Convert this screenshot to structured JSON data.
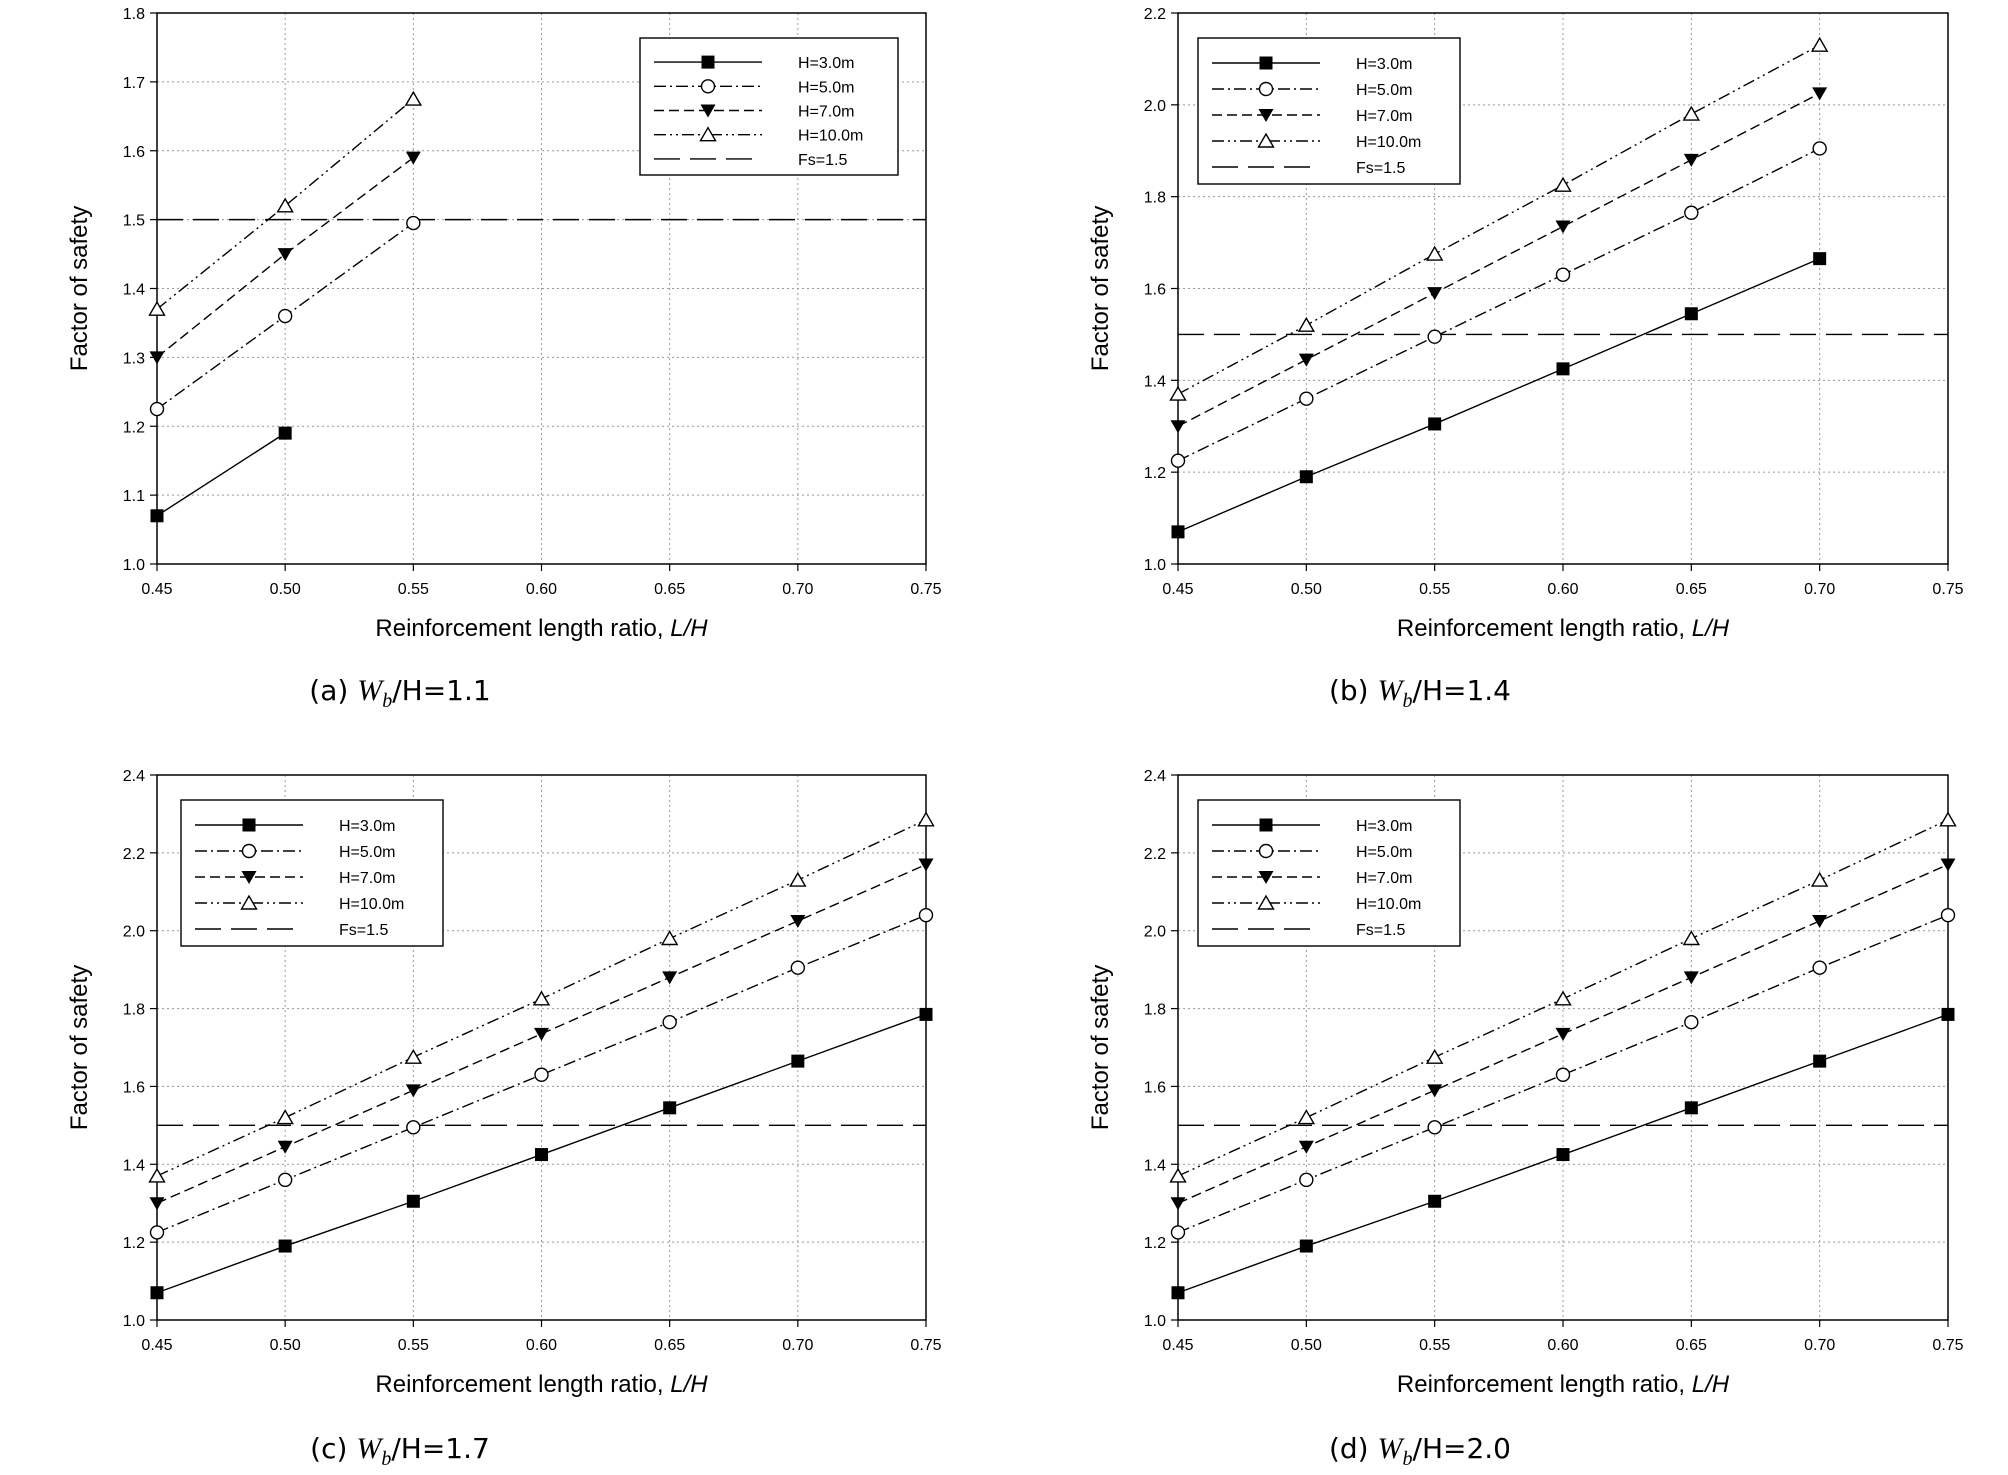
{
  "chart_data": [
    {
      "type": "line",
      "caption": {
        "prefix": "(a)",
        "w": "W",
        "sub": "b",
        "rest": "/H=1.1"
      },
      "xlabel": "Reinforcement length ratio, ",
      "xlabel_italic": "L/H",
      "ylabel": "Factor of safety",
      "xlim": [
        0.45,
        0.75
      ],
      "ylim": [
        1.0,
        1.8
      ],
      "xticks": [
        "0.45",
        "0.50",
        "0.55",
        "0.60",
        "0.65",
        "0.70",
        "0.75"
      ],
      "yticks": [
        "1.0",
        "1.1",
        "1.2",
        "1.3",
        "1.4",
        "1.5",
        "1.6",
        "1.7",
        "1.8"
      ],
      "grid": true,
      "legend_position": "top-right",
      "series": [
        {
          "name": "H=3.0m",
          "x": [
            0.45,
            0.5
          ],
          "y": [
            1.07,
            1.19
          ]
        },
        {
          "name": "H=5.0m",
          "x": [
            0.45,
            0.5,
            0.55
          ],
          "y": [
            1.225,
            1.36,
            1.495
          ]
        },
        {
          "name": "H=7.0m",
          "x": [
            0.45,
            0.5,
            0.55
          ],
          "y": [
            1.3,
            1.45,
            1.59
          ]
        },
        {
          "name": "H=10.0m",
          "x": [
            0.45,
            0.5,
            0.55
          ],
          "y": [
            1.37,
            1.52,
            1.675
          ]
        }
      ],
      "reference": {
        "name": "Fs=1.5",
        "y": 1.5
      }
    },
    {
      "type": "line",
      "caption": {
        "prefix": "(b)",
        "w": "W",
        "sub": "b",
        "rest": "/H=1.4"
      },
      "xlabel": "Reinforcement length ratio, ",
      "xlabel_italic": "L/H",
      "ylabel": "Factor of safety",
      "xlim": [
        0.45,
        0.75
      ],
      "ylim": [
        1.0,
        2.2
      ],
      "xticks": [
        "0.45",
        "0.50",
        "0.55",
        "0.60",
        "0.65",
        "0.70",
        "0.75"
      ],
      "yticks": [
        "1.0",
        "1.2",
        "1.4",
        "1.6",
        "1.8",
        "2.0",
        "2.2"
      ],
      "grid": true,
      "legend_position": "top-left",
      "series": [
        {
          "name": "H=3.0m",
          "x": [
            0.45,
            0.5,
            0.55,
            0.6,
            0.65,
            0.7
          ],
          "y": [
            1.07,
            1.19,
            1.305,
            1.425,
            1.545,
            1.665
          ]
        },
        {
          "name": "H=5.0m",
          "x": [
            0.45,
            0.5,
            0.55,
            0.6,
            0.65,
            0.7
          ],
          "y": [
            1.225,
            1.36,
            1.495,
            1.63,
            1.765,
            1.905
          ]
        },
        {
          "name": "H=7.0m",
          "x": [
            0.45,
            0.5,
            0.55,
            0.6,
            0.65,
            0.7
          ],
          "y": [
            1.3,
            1.445,
            1.59,
            1.735,
            1.88,
            2.025
          ]
        },
        {
          "name": "H=10.0m",
          "x": [
            0.45,
            0.5,
            0.55,
            0.6,
            0.65,
            0.7
          ],
          "y": [
            1.37,
            1.52,
            1.675,
            1.825,
            1.98,
            2.13
          ]
        }
      ],
      "reference": {
        "name": "Fs=1.5",
        "y": 1.5
      }
    },
    {
      "type": "line",
      "caption": {
        "prefix": "(c)",
        "w": "W",
        "sub": "b",
        "rest": "/H=1.7"
      },
      "xlabel": "Reinforcement length ratio, ",
      "xlabel_italic": "L/H",
      "ylabel": "Factor of safety",
      "xlim": [
        0.45,
        0.75
      ],
      "ylim": [
        1.0,
        2.4
      ],
      "xticks": [
        "0.45",
        "0.50",
        "0.55",
        "0.60",
        "0.65",
        "0.70",
        "0.75"
      ],
      "yticks": [
        "1.0",
        "1.2",
        "1.4",
        "1.6",
        "1.8",
        "2.0",
        "2.2",
        "2.4"
      ],
      "grid": true,
      "legend_position": "top-left",
      "series": [
        {
          "name": "H=3.0m",
          "x": [
            0.45,
            0.5,
            0.55,
            0.6,
            0.65,
            0.7,
            0.75
          ],
          "y": [
            1.07,
            1.19,
            1.305,
            1.425,
            1.545,
            1.665,
            1.785
          ]
        },
        {
          "name": "H=5.0m",
          "x": [
            0.45,
            0.5,
            0.55,
            0.6,
            0.65,
            0.7,
            0.75
          ],
          "y": [
            1.225,
            1.36,
            1.495,
            1.63,
            1.765,
            1.905,
            2.04
          ]
        },
        {
          "name": "H=7.0m",
          "x": [
            0.45,
            0.5,
            0.55,
            0.6,
            0.65,
            0.7,
            0.75
          ],
          "y": [
            1.3,
            1.445,
            1.59,
            1.735,
            1.88,
            2.025,
            2.17
          ]
        },
        {
          "name": "H=10.0m",
          "x": [
            0.45,
            0.5,
            0.55,
            0.6,
            0.65,
            0.7,
            0.75
          ],
          "y": [
            1.37,
            1.52,
            1.675,
            1.825,
            1.98,
            2.13,
            2.285
          ]
        }
      ],
      "reference": {
        "name": "Fs=1.5",
        "y": 1.5
      }
    },
    {
      "type": "line",
      "caption": {
        "prefix": "(d)",
        "w": "W",
        "sub": "b",
        "rest": "/H=2.0"
      },
      "xlabel": "Reinforcement length ratio, ",
      "xlabel_italic": "L/H",
      "ylabel": "Factor of safety",
      "xlim": [
        0.45,
        0.75
      ],
      "ylim": [
        1.0,
        2.4
      ],
      "xticks": [
        "0.45",
        "0.50",
        "0.55",
        "0.60",
        "0.65",
        "0.70",
        "0.75"
      ],
      "yticks": [
        "1.0",
        "1.2",
        "1.4",
        "1.6",
        "1.8",
        "2.0",
        "2.2",
        "2.4"
      ],
      "grid": true,
      "legend_position": "top-left",
      "series": [
        {
          "name": "H=3.0m",
          "x": [
            0.45,
            0.5,
            0.55,
            0.6,
            0.65,
            0.7,
            0.75
          ],
          "y": [
            1.07,
            1.19,
            1.305,
            1.425,
            1.545,
            1.665,
            1.785
          ]
        },
        {
          "name": "H=5.0m",
          "x": [
            0.45,
            0.5,
            0.55,
            0.6,
            0.65,
            0.7,
            0.75
          ],
          "y": [
            1.225,
            1.36,
            1.495,
            1.63,
            1.765,
            1.905,
            2.04
          ]
        },
        {
          "name": "H=7.0m",
          "x": [
            0.45,
            0.5,
            0.55,
            0.6,
            0.65,
            0.7,
            0.75
          ],
          "y": [
            1.3,
            1.445,
            1.59,
            1.735,
            1.88,
            2.025,
            2.17
          ]
        },
        {
          "name": "H=10.0m",
          "x": [
            0.45,
            0.5,
            0.55,
            0.6,
            0.65,
            0.7,
            0.75
          ],
          "y": [
            1.37,
            1.52,
            1.675,
            1.825,
            1.98,
            2.13,
            2.285
          ]
        }
      ],
      "reference": {
        "name": "Fs=1.5",
        "y": 1.5
      }
    }
  ]
}
